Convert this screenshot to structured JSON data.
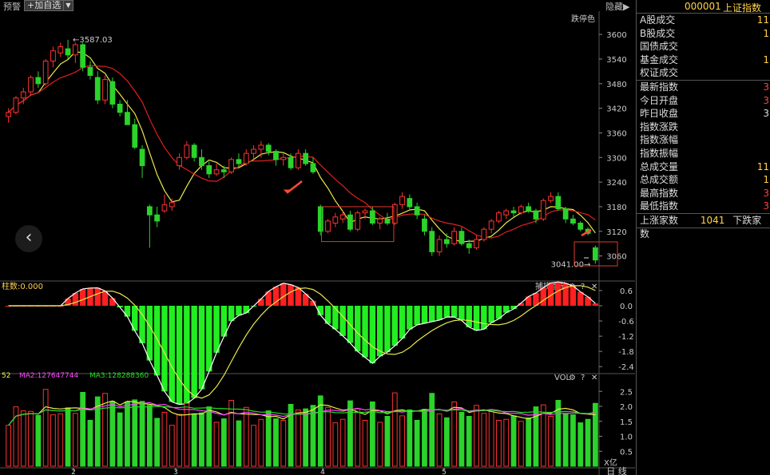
{
  "toolbar": {
    "warn": "预警",
    "add": "+加自选",
    "drop": "▼",
    "hide": "隐藏",
    "hide_arrow": "▶"
  },
  "colors": {
    "up": "#ff3232",
    "down": "#2bd32b",
    "ma5": "#e8e84a",
    "ma10": "#e02020",
    "macd_up": "#ff2020",
    "macd_down": "#22ee22",
    "ma3": "#22dd22",
    "ma2": "#ff44ff"
  },
  "side": {
    "code": "000001",
    "name": "上证指数",
    "rows": [
      {
        "label": "A股成交",
        "value": "11",
        "cls": "y"
      },
      {
        "label": "B股成交",
        "value": "1",
        "cls": "y"
      },
      {
        "label": "国债成交",
        "value": "",
        "cls": "y"
      },
      {
        "label": "基金成交",
        "value": "1",
        "cls": "y"
      },
      {
        "label": "权证成交",
        "value": "",
        "cls": "y"
      },
      {
        "label": "最新指数",
        "value": "3",
        "cls": "r",
        "sep": true
      },
      {
        "label": "今日开盘",
        "value": "3",
        "cls": "r"
      },
      {
        "label": "昨日收盘",
        "value": "3",
        "cls": ""
      },
      {
        "label": "指数涨跌",
        "value": "",
        "cls": ""
      },
      {
        "label": "指数涨幅",
        "value": "",
        "cls": ""
      },
      {
        "label": "指数振幅",
        "value": "",
        "cls": ""
      },
      {
        "label": "总成交量",
        "value": "11",
        "cls": "y"
      },
      {
        "label": "总成交额",
        "value": "1",
        "cls": "y"
      },
      {
        "label": "最高指数",
        "value": "3",
        "cls": "r"
      },
      {
        "label": "最低指数",
        "value": "3",
        "cls": "r"
      }
    ],
    "updown": {
      "up_label": "上涨家数",
      "up_value": "1041",
      "down_label": "下跌家数"
    }
  },
  "nav": {
    "back": "‹"
  },
  "chart_data": {
    "type": "candlestick",
    "price_panel": {
      "label": "跌停色",
      "yticks": [
        3600,
        3540,
        3480,
        3420,
        3360,
        3300,
        3240,
        3180,
        3120,
        3060
      ],
      "ylim": [
        3030,
        3645
      ],
      "high_marker": "3587.03",
      "low_marker": "3041.00",
      "current_price_mark": "3060",
      "candles": [
        {
          "o": 3400,
          "h": 3420,
          "l": 3385,
          "c": 3410
        },
        {
          "o": 3410,
          "h": 3450,
          "l": 3405,
          "c": 3445
        },
        {
          "o": 3445,
          "h": 3470,
          "l": 3430,
          "c": 3460
        },
        {
          "o": 3460,
          "h": 3500,
          "l": 3450,
          "c": 3495
        },
        {
          "o": 3495,
          "h": 3510,
          "l": 3470,
          "c": 3480
        },
        {
          "o": 3480,
          "h": 3540,
          "l": 3475,
          "c": 3535
        },
        {
          "o": 3535,
          "h": 3570,
          "l": 3520,
          "c": 3560
        },
        {
          "o": 3555,
          "h": 3580,
          "l": 3545,
          "c": 3570
        },
        {
          "o": 3565,
          "h": 3587,
          "l": 3540,
          "c": 3550
        },
        {
          "o": 3550,
          "h": 3580,
          "l": 3530,
          "c": 3575
        },
        {
          "o": 3575,
          "h": 3580,
          "l": 3510,
          "c": 3520
        },
        {
          "o": 3520,
          "h": 3535,
          "l": 3490,
          "c": 3500
        },
        {
          "o": 3495,
          "h": 3510,
          "l": 3430,
          "c": 3440
        },
        {
          "o": 3440,
          "h": 3500,
          "l": 3430,
          "c": 3490
        },
        {
          "o": 3485,
          "h": 3495,
          "l": 3420,
          "c": 3430
        },
        {
          "o": 3430,
          "h": 3440,
          "l": 3400,
          "c": 3410
        },
        {
          "o": 3410,
          "h": 3440,
          "l": 3380,
          "c": 3380
        },
        {
          "o": 3380,
          "h": 3395,
          "l": 3320,
          "c": 3325
        },
        {
          "o": 3320,
          "h": 3330,
          "l": 3250,
          "c": 3280
        },
        {
          "o": 3180,
          "h": 3185,
          "l": 3080,
          "c": 3160
        },
        {
          "o": 3160,
          "h": 3180,
          "l": 3130,
          "c": 3145
        },
        {
          "o": 3170,
          "h": 3210,
          "l": 3165,
          "c": 3185
        },
        {
          "o": 3180,
          "h": 3200,
          "l": 3170,
          "c": 3190
        },
        {
          "o": 3280,
          "h": 3310,
          "l": 3270,
          "c": 3300
        },
        {
          "o": 3300,
          "h": 3340,
          "l": 3295,
          "c": 3330
        },
        {
          "o": 3330,
          "h": 3335,
          "l": 3290,
          "c": 3300
        },
        {
          "o": 3300,
          "h": 3320,
          "l": 3270,
          "c": 3280
        },
        {
          "o": 3280,
          "h": 3290,
          "l": 3250,
          "c": 3260
        },
        {
          "o": 3260,
          "h": 3285,
          "l": 3255,
          "c": 3270
        },
        {
          "o": 3270,
          "h": 3280,
          "l": 3250,
          "c": 3265
        },
        {
          "o": 3265,
          "h": 3300,
          "l": 3260,
          "c": 3295
        },
        {
          "o": 3295,
          "h": 3310,
          "l": 3275,
          "c": 3285
        },
        {
          "o": 3285,
          "h": 3320,
          "l": 3280,
          "c": 3310
        },
        {
          "o": 3310,
          "h": 3330,
          "l": 3295,
          "c": 3320
        },
        {
          "o": 3320,
          "h": 3340,
          "l": 3300,
          "c": 3330
        },
        {
          "o": 3330,
          "h": 3335,
          "l": 3305,
          "c": 3315
        },
        {
          "o": 3315,
          "h": 3320,
          "l": 3280,
          "c": 3295
        },
        {
          "o": 3295,
          "h": 3310,
          "l": 3280,
          "c": 3300
        },
        {
          "o": 3300,
          "h": 3310,
          "l": 3270,
          "c": 3275
        },
        {
          "o": 3275,
          "h": 3320,
          "l": 3270,
          "c": 3310
        },
        {
          "o": 3310,
          "h": 3320,
          "l": 3280,
          "c": 3285
        },
        {
          "o": 3285,
          "h": 3300,
          "l": 3260,
          "c": 3265
        },
        {
          "o": 3180,
          "h": 3185,
          "l": 3110,
          "c": 3120
        },
        {
          "o": 3120,
          "h": 3150,
          "l": 3115,
          "c": 3145
        },
        {
          "o": 3140,
          "h": 3165,
          "l": 3130,
          "c": 3155
        },
        {
          "o": 3150,
          "h": 3170,
          "l": 3140,
          "c": 3160
        },
        {
          "o": 3160,
          "h": 3170,
          "l": 3120,
          "c": 3125
        },
        {
          "o": 3125,
          "h": 3170,
          "l": 3120,
          "c": 3165
        },
        {
          "o": 3165,
          "h": 3175,
          "l": 3150,
          "c": 3170
        },
        {
          "o": 3170,
          "h": 3180,
          "l": 3135,
          "c": 3140
        },
        {
          "o": 3140,
          "h": 3155,
          "l": 3125,
          "c": 3150
        },
        {
          "o": 3150,
          "h": 3165,
          "l": 3135,
          "c": 3140
        },
        {
          "o": 3140,
          "h": 3190,
          "l": 3135,
          "c": 3185
        },
        {
          "o": 3185,
          "h": 3215,
          "l": 3175,
          "c": 3205
        },
        {
          "o": 3200,
          "h": 3210,
          "l": 3170,
          "c": 3180
        },
        {
          "o": 3180,
          "h": 3190,
          "l": 3150,
          "c": 3160
        },
        {
          "o": 3150,
          "h": 3160,
          "l": 3110,
          "c": 3120
        },
        {
          "o": 3120,
          "h": 3130,
          "l": 3060,
          "c": 3070
        },
        {
          "o": 3070,
          "h": 3110,
          "l": 3060,
          "c": 3100
        },
        {
          "o": 3100,
          "h": 3115,
          "l": 3080,
          "c": 3090
        },
        {
          "o": 3090,
          "h": 3130,
          "l": 3085,
          "c": 3120
        },
        {
          "o": 3120,
          "h": 3130,
          "l": 3085,
          "c": 3090
        },
        {
          "o": 3090,
          "h": 3100,
          "l": 3065,
          "c": 3080
        },
        {
          "o": 3080,
          "h": 3110,
          "l": 3075,
          "c": 3100
        },
        {
          "o": 3100,
          "h": 3130,
          "l": 3095,
          "c": 3125
        },
        {
          "o": 3125,
          "h": 3150,
          "l": 3115,
          "c": 3145
        },
        {
          "o": 3145,
          "h": 3170,
          "l": 3140,
          "c": 3165
        },
        {
          "o": 3160,
          "h": 3175,
          "l": 3150,
          "c": 3170
        },
        {
          "o": 3170,
          "h": 3180,
          "l": 3155,
          "c": 3165
        },
        {
          "o": 3165,
          "h": 3185,
          "l": 3160,
          "c": 3180
        },
        {
          "o": 3180,
          "h": 3190,
          "l": 3165,
          "c": 3170
        },
        {
          "o": 3170,
          "h": 3175,
          "l": 3140,
          "c": 3150
        },
        {
          "o": 3150,
          "h": 3200,
          "l": 3145,
          "c": 3195
        },
        {
          "o": 3195,
          "h": 3215,
          "l": 3190,
          "c": 3205
        },
        {
          "o": 3205,
          "h": 3215,
          "l": 3170,
          "c": 3175
        },
        {
          "o": 3175,
          "h": 3180,
          "l": 3140,
          "c": 3150
        },
        {
          "o": 3150,
          "h": 3160,
          "l": 3135,
          "c": 3140
        },
        {
          "o": 3140,
          "h": 3145,
          "l": 3120,
          "c": 3125
        },
        {
          "o": 3125,
          "h": 3130,
          "l": 3110,
          "c": 3115
        },
        {
          "o": 3080,
          "h": 3085,
          "l": 3041,
          "c": 3050
        }
      ]
    },
    "macd_panel": {
      "label": "柱数:0.000",
      "tool_label": "捕捞季节",
      "yticks": [
        "0.6",
        "0.0",
        "-0.6",
        "-1.2",
        "-1.8",
        "-2.4"
      ],
      "ylim": [
        -2.55,
        0.85
      ]
    },
    "volume_panel": {
      "legend": [
        {
          "text": "52",
          "color": "#e8e84a"
        },
        {
          "text": "MA2:127647744",
          "color": "#ff44ff"
        },
        {
          "text": "MA3:128288360",
          "color": "#22dd22"
        }
      ],
      "tool_label": "VOL",
      "yticks": [
        "2.5",
        "2.0",
        "1.5",
        "1.0",
        "0.5"
      ],
      "unit": "X亿",
      "ylim": [
        0,
        2.8
      ]
    },
    "xlabels": [
      "2",
      "3",
      "4",
      "5"
    ],
    "period_label": "日 线"
  }
}
